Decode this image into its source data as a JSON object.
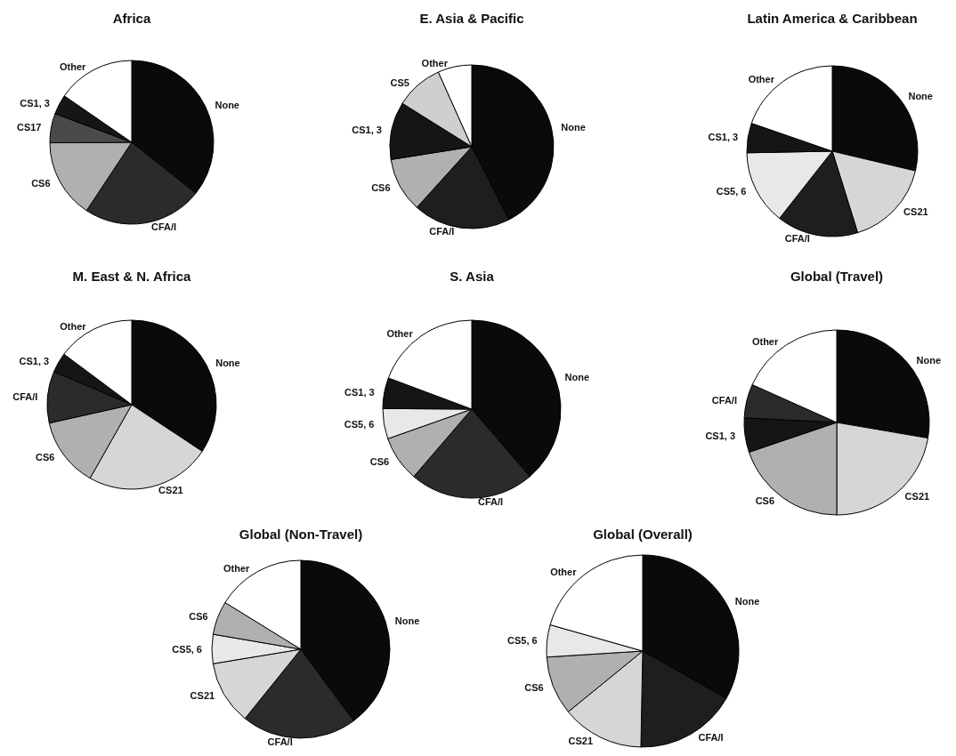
{
  "chart_data": [
    {
      "type": "pie",
      "title": "Africa",
      "categories": [
        "None",
        "CFA/I",
        "CS6",
        "CS17",
        "CS1, 3",
        "Other"
      ],
      "values": [
        35.7,
        23.6,
        15.6,
        5.8,
        3.9,
        15.4
      ],
      "colors": [
        "#0a0a0a",
        "#2b2b2b",
        "#b0b0b0",
        "#4a4a4a",
        "#151515",
        "#ffffff"
      ]
    },
    {
      "type": "pie",
      "title": "E. Asia & Pacific",
      "categories": [
        "None",
        "CFA/I",
        "CS6",
        "CS1, 3",
        "CS5",
        "Other"
      ],
      "values": [
        42.5,
        19.2,
        10.8,
        11.4,
        9.4,
        6.7
      ],
      "colors": [
        "#0a0a0a",
        "#1e1e1e",
        "#b0b0b0",
        "#151515",
        "#cfcfcf",
        "#ffffff"
      ]
    },
    {
      "type": "pie",
      "title": "Latin America & Caribbean",
      "categories": [
        "None",
        "CS21",
        "CFA/I",
        "CS5, 6",
        "CS1, 3",
        "Other"
      ],
      "values": [
        28.7,
        16.5,
        15.4,
        14.1,
        5.6,
        19.7
      ],
      "colors": [
        "#0a0a0a",
        "#d6d6d6",
        "#1e1e1e",
        "#e8e8e8",
        "#151515",
        "#ffffff"
      ]
    },
    {
      "type": "pie",
      "title": "M. East & N. Africa",
      "categories": [
        "None",
        "CS21",
        "CS6",
        "CFA/I",
        "CS1, 3",
        "Other"
      ],
      "values": [
        34.3,
        23.9,
        13.3,
        9.9,
        3.8,
        14.8
      ],
      "colors": [
        "#0a0a0a",
        "#d6d6d6",
        "#b0b0b0",
        "#2b2b2b",
        "#151515",
        "#ffffff"
      ]
    },
    {
      "type": "pie",
      "title": "S. Asia",
      "categories": [
        "None",
        "CFA/I",
        "CS6",
        "CS5, 6",
        "CS1, 3",
        "Other"
      ],
      "values": [
        38.7,
        22.6,
        8.3,
        5.5,
        5.6,
        19.3
      ],
      "colors": [
        "#0a0a0a",
        "#2b2b2b",
        "#b0b0b0",
        "#e8e8e8",
        "#151515",
        "#ffffff"
      ]
    },
    {
      "type": "pie",
      "title": "Global (Travel)",
      "categories": [
        "None",
        "CS21",
        "CS6",
        "CS1, 3",
        "CFA/I",
        "Other"
      ],
      "values": [
        27.7,
        22.3,
        19.8,
        6.0,
        5.9,
        18.3
      ],
      "colors": [
        "#0a0a0a",
        "#d6d6d6",
        "#b0b0b0",
        "#151515",
        "#2b2b2b",
        "#ffffff"
      ]
    },
    {
      "type": "pie",
      "title": "Global (Non-Travel)",
      "categories": [
        "None",
        "CFA/I",
        "CS21",
        "CS5, 6",
        "CS6",
        "Other"
      ],
      "values": [
        39.9,
        20.9,
        11.6,
        5.3,
        6.1,
        16.2
      ],
      "colors": [
        "#0a0a0a",
        "#2b2b2b",
        "#d6d6d6",
        "#e8e8e8",
        "#b0b0b0",
        "#ffffff"
      ]
    },
    {
      "type": "pie",
      "title": "Global (Overall)",
      "categories": [
        "None",
        "CFA/I",
        "CS21",
        "CS6",
        "CS5, 6",
        "Other"
      ],
      "values": [
        33.2,
        17.1,
        13.8,
        9.9,
        5.4,
        20.6
      ],
      "colors": [
        "#0a0a0a",
        "#1e1e1e",
        "#d6d6d6",
        "#b0b0b0",
        "#e8e8e8",
        "#ffffff"
      ]
    }
  ]
}
